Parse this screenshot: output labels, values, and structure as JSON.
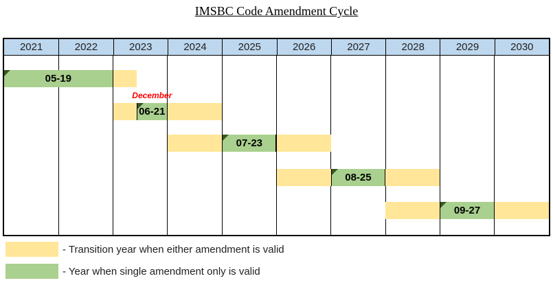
{
  "title": "IMSBC Code Amendment Cycle",
  "colors": {
    "transition": "#FFE699",
    "single_valid": "#A9D08E",
    "header_fill": "#BDD7EE",
    "marker_triangle": "#375623",
    "annotation_text": "#FF0000",
    "grid_border": "#000000"
  },
  "legend": {
    "items": [
      {
        "swatch": "transition",
        "label": "- Transition year when either amendment is valid"
      },
      {
        "swatch": "single_valid",
        "label": "- Year when single amendment only is valid"
      }
    ]
  },
  "chart_data": {
    "type": "gantt",
    "title": "IMSBC Code Amendment Cycle",
    "x_ticks": [
      "2021",
      "2022",
      "2023",
      "2024",
      "2025",
      "2026",
      "2027",
      "2028",
      "2029",
      "2030"
    ],
    "x_range": [
      2021,
      2031
    ],
    "grid": true,
    "legend_position": "bottom-left",
    "legend": [
      {
        "color": "#FFE699",
        "meaning": "Transition year when either amendment is valid"
      },
      {
        "color": "#A9D08E",
        "meaning": "Year when single amendment only is valid"
      }
    ],
    "rows": [
      {
        "amendment": "05-19",
        "segments": [
          {
            "kind": "single_valid",
            "from": 2021.0,
            "to": 2023.0
          },
          {
            "kind": "transition",
            "from": 2023.0,
            "to": 2023.43
          }
        ]
      },
      {
        "amendment": "06-21",
        "annotation": "December",
        "segments": [
          {
            "kind": "transition",
            "from": 2023.0,
            "to": 2023.43
          },
          {
            "kind": "single_valid",
            "from": 2023.43,
            "to": 2024.0
          },
          {
            "kind": "transition",
            "from": 2024.0,
            "to": 2025.0
          }
        ]
      },
      {
        "amendment": "07-23",
        "segments": [
          {
            "kind": "transition",
            "from": 2024.0,
            "to": 2025.0
          },
          {
            "kind": "single_valid",
            "from": 2025.0,
            "to": 2026.0
          },
          {
            "kind": "transition",
            "from": 2026.0,
            "to": 2027.0
          }
        ]
      },
      {
        "amendment": "08-25",
        "segments": [
          {
            "kind": "transition",
            "from": 2026.0,
            "to": 2027.0
          },
          {
            "kind": "single_valid",
            "from": 2027.0,
            "to": 2028.0
          },
          {
            "kind": "transition",
            "from": 2028.0,
            "to": 2029.0
          }
        ]
      },
      {
        "amendment": "09-27",
        "segments": [
          {
            "kind": "transition",
            "from": 2028.0,
            "to": 2029.0
          },
          {
            "kind": "single_valid",
            "from": 2029.0,
            "to": 2030.0
          },
          {
            "kind": "transition",
            "from": 2030.0,
            "to": 2031.0
          }
        ]
      }
    ]
  }
}
